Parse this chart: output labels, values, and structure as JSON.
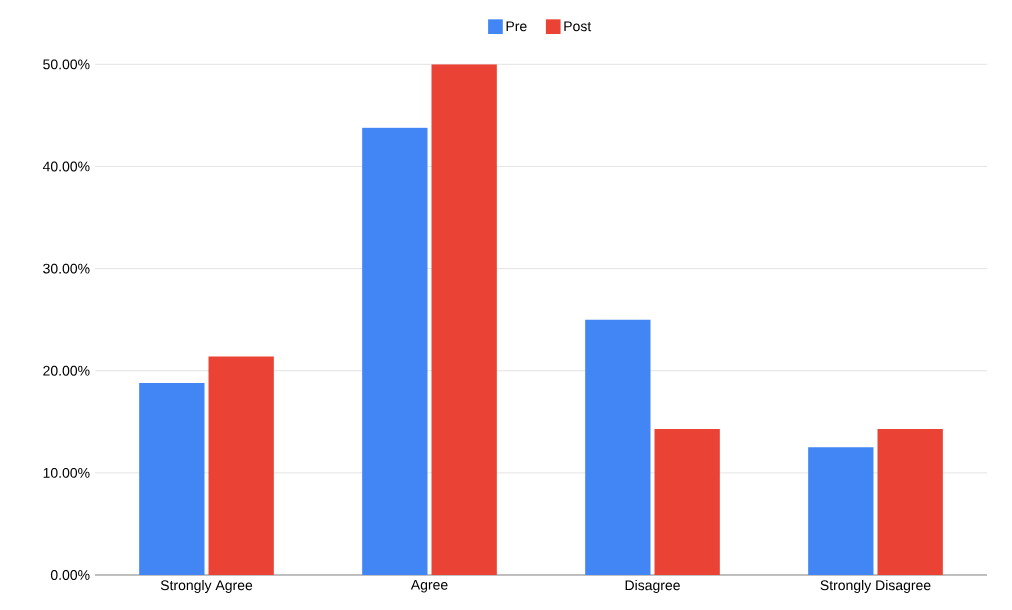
{
  "chart_data": {
    "type": "bar",
    "categories": [
      "Strongly Agree",
      "Agree",
      "Disagree",
      "Strongly Disagree"
    ],
    "series": [
      {
        "name": "Pre",
        "color": "#4285f4",
        "values": [
          18.8,
          43.8,
          25,
          12.5
        ]
      },
      {
        "name": "Post",
        "color": "#ea4335",
        "values": [
          21.4,
          50,
          14.3,
          14.3
        ]
      }
    ],
    "ylim": [
      0,
      50
    ],
    "yticks": [
      {
        "value": 0,
        "label": "0.00%"
      },
      {
        "value": 10,
        "label": "10.00%"
      },
      {
        "value": 20,
        "label": "20.00%"
      },
      {
        "value": 30,
        "label": "30.00%"
      },
      {
        "value": 40,
        "label": "40.00%"
      },
      {
        "value": 50,
        "label": "50.00%"
      }
    ],
    "grid": "y",
    "legend": "top"
  }
}
